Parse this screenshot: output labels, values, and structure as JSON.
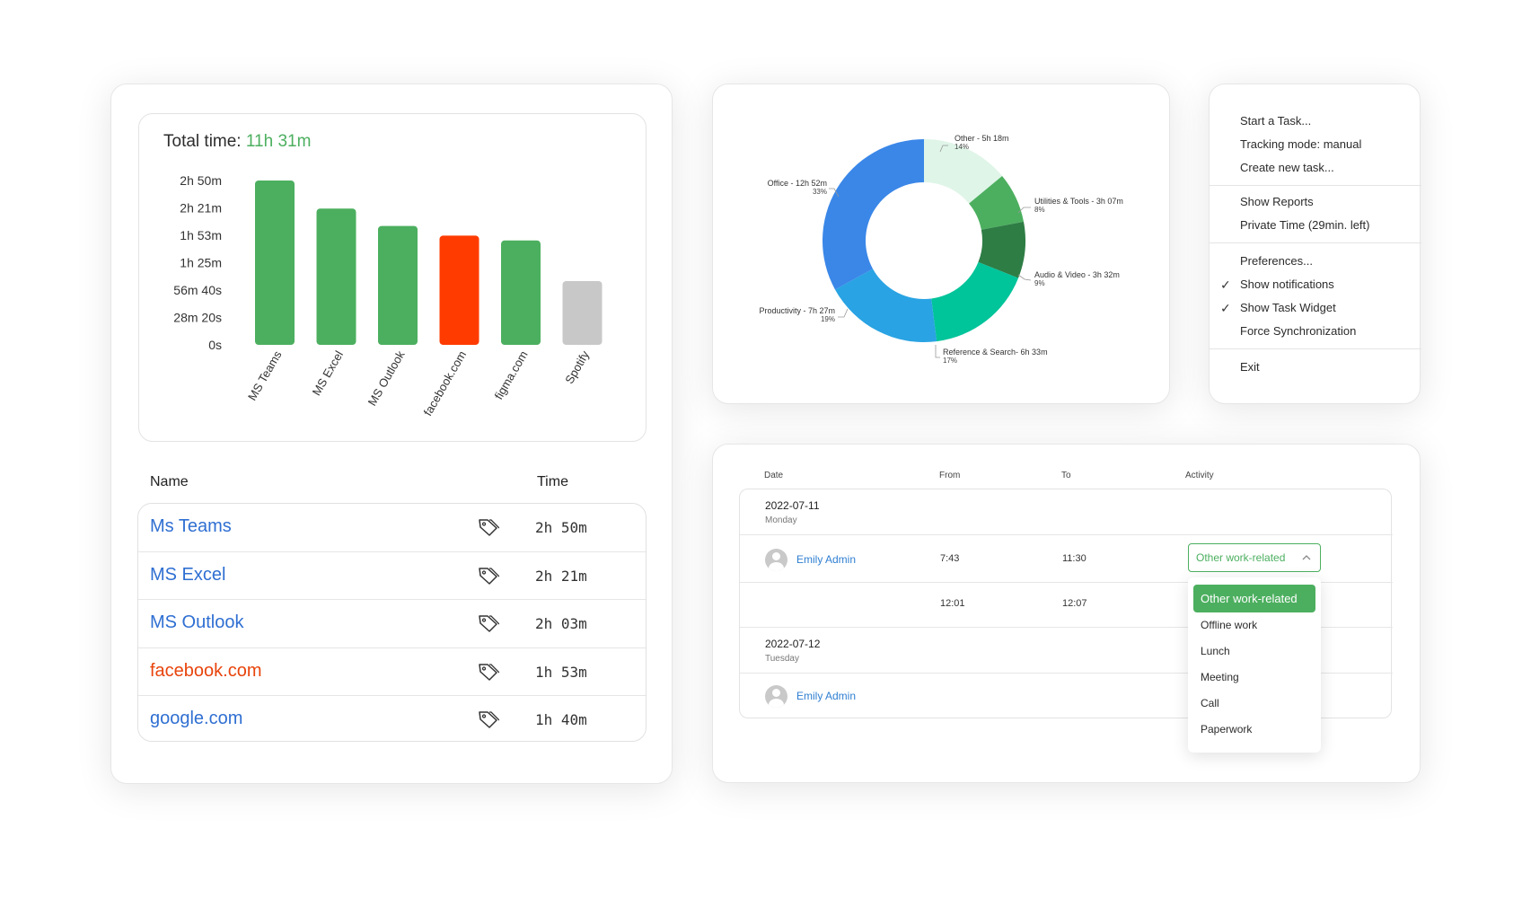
{
  "bar_panel": {
    "total_label": "Total time:",
    "total_value": "11h 31m",
    "colors": {
      "green": "#4caf5f",
      "red": "#ff3b00",
      "gray": "#c8c8c8"
    }
  },
  "chart_data": [
    {
      "type": "bar",
      "title": "Total time: 11h 31m",
      "categories": [
        "MS Teams",
        "MS Excel",
        "MS Outlook",
        "facebook.com",
        "figma.com",
        "Spotify"
      ],
      "values_minutes": [
        170,
        141,
        123,
        113,
        108,
        66
      ],
      "bar_colors": [
        "#4caf5f",
        "#4caf5f",
        "#4caf5f",
        "#ff3b00",
        "#4caf5f",
        "#c8c8c8"
      ],
      "ytick_labels": [
        "2h 50m",
        "2h 21m",
        "1h 53m",
        "1h 25m",
        "56m 40s",
        "28m 20s",
        "0s"
      ],
      "ytick_values_minutes": [
        170,
        141.67,
        113.33,
        85,
        56.67,
        28.33,
        0
      ],
      "ylim_minutes": [
        0,
        170
      ],
      "grid": false
    },
    {
      "type": "pie",
      "style": "donut",
      "slices": [
        {
          "label": "Other - 5h 18m",
          "percent_label": "14%",
          "percent": 14,
          "color": "#dff5e8"
        },
        {
          "label": "Utilities & Tools - 3h 07m",
          "percent_label": "8%",
          "percent": 8,
          "color": "#4caf5f"
        },
        {
          "label": "Audio & Video - 3h 32m",
          "percent_label": "9%",
          "percent": 9,
          "color": "#2e7d45"
        },
        {
          "label": "Reference & Search- 6h 33m",
          "percent_label": "17%",
          "percent": 17,
          "color": "#00c49a"
        },
        {
          "label": "Productivity - 7h 27m",
          "percent_label": "19%",
          "percent": 19,
          "color": "#29a3e3"
        },
        {
          "label": "Office - 12h 52m",
          "percent_label": "33%",
          "percent": 33,
          "color": "#3a87e8"
        }
      ]
    }
  ],
  "app_table": {
    "header_name": "Name",
    "header_time": "Time",
    "rows": [
      {
        "name": "Ms Teams",
        "time": "2h 50m",
        "highlight": false
      },
      {
        "name": "MS Excel",
        "time": "2h 21m",
        "highlight": false
      },
      {
        "name": "MS Outlook",
        "time": "2h 03m",
        "highlight": false
      },
      {
        "name": "facebook.com",
        "time": "1h 53m",
        "highlight": true
      },
      {
        "name": "google.com",
        "time": "1h 40m",
        "highlight": false
      }
    ],
    "tag_icon": "tag-icon"
  },
  "menu": {
    "group1": [
      "Start a Task...",
      "Tracking mode: manual",
      "Create new task..."
    ],
    "group2": [
      "Show Reports",
      "Private Time (29min. left)"
    ],
    "group3": [
      {
        "label": "Preferences...",
        "checked": false
      },
      {
        "label": "Show notifications",
        "checked": true
      },
      {
        "label": "Show Task Widget",
        "checked": true
      },
      {
        "label": "Force Synchronization",
        "checked": false
      }
    ],
    "group4": [
      "Exit"
    ],
    "check_glyph": "✓"
  },
  "activity": {
    "headers": {
      "date": "Date",
      "from": "From",
      "to": "To",
      "activity": "Activity"
    },
    "day1": {
      "date": "2022-07-11",
      "weekday": "Monday"
    },
    "row1": {
      "user": "Emily Admin",
      "from": "7:43",
      "to": "11:30"
    },
    "row2": {
      "from": "12:01",
      "to": "12:07"
    },
    "day2": {
      "date": "2022-07-12",
      "weekday": "Tuesday"
    },
    "row3": {
      "user": "Emily Admin"
    },
    "select_value": "Other work-related",
    "dropdown_options": [
      "Other work-related",
      "Offline work",
      "Lunch",
      "Meeting",
      "Call",
      "Paperwork"
    ],
    "accent": "#4caf5f"
  }
}
